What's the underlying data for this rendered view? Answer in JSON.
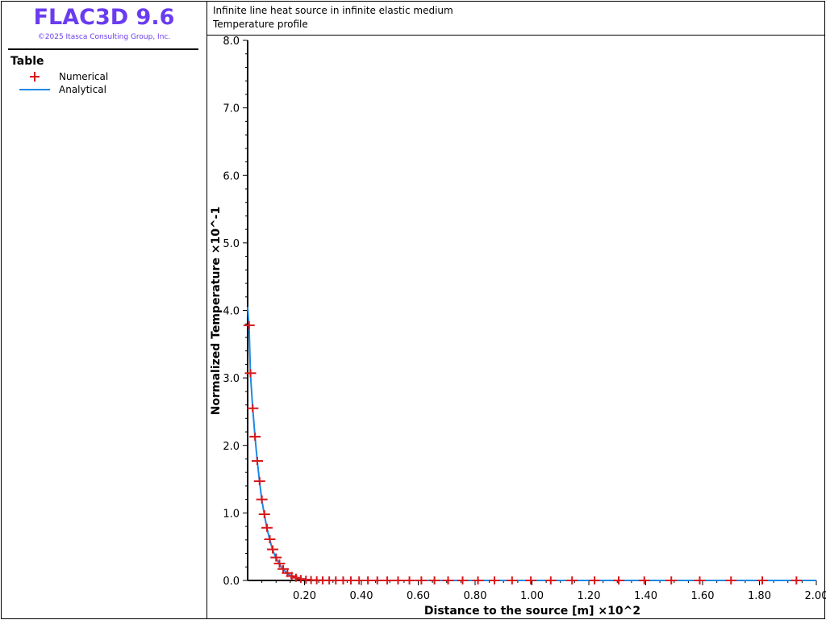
{
  "app": {
    "title": "FLAC3D 9.6",
    "copyright": "©2025 Itasca Consulting Group, Inc."
  },
  "legend": {
    "title": "Table",
    "items": [
      {
        "label": "Numerical",
        "symbol": "plus",
        "color": "#d7191c"
      },
      {
        "label": "Analytical",
        "symbol": "line",
        "color": "#1e88e5"
      }
    ]
  },
  "colors": {
    "brand": "#6a3cf0",
    "numerical": "#d7191c",
    "analytical": "#1e88e5"
  },
  "chart_data": {
    "type": "line",
    "title": "Infinite line heat source in infinite elastic medium",
    "subtitle": "Temperature profile",
    "xlabel": "Distance to the source [m] ×10^2",
    "ylabel": "Normalized Temperature ×10^-1",
    "xlim": [
      0.0,
      2.0
    ],
    "ylim": [
      0.0,
      8.0
    ],
    "xticks": [
      "0.20",
      "0.40",
      "0.60",
      "0.80",
      "1.00",
      "1.20",
      "1.40",
      "1.60",
      "1.80",
      "2.00"
    ],
    "yticks": [
      "0.0",
      "1.0",
      "2.0",
      "3.0",
      "4.0",
      "5.0",
      "6.0",
      "7.0",
      "8.0"
    ],
    "grid": false,
    "series": [
      {
        "name": "Numerical",
        "marker": "plus",
        "x": [
          0.005,
          0.01,
          0.018,
          0.026,
          0.034,
          0.042,
          0.05,
          0.059,
          0.068,
          0.078,
          0.088,
          0.1,
          0.112,
          0.125,
          0.14,
          0.155,
          0.17,
          0.187,
          0.205,
          0.223,
          0.243,
          0.264,
          0.287,
          0.31,
          0.336,
          0.363,
          0.392,
          0.423,
          0.456,
          0.491,
          0.529,
          0.569,
          0.611,
          0.657,
          0.705,
          0.756,
          0.81,
          0.868,
          0.93,
          0.996,
          1.066,
          1.141,
          1.22,
          1.305,
          1.395,
          1.49,
          1.59,
          1.7,
          1.81,
          1.93
        ],
        "y": [
          3.78,
          3.07,
          2.55,
          2.13,
          1.77,
          1.47,
          1.2,
          0.98,
          0.78,
          0.61,
          0.46,
          0.34,
          0.25,
          0.17,
          0.11,
          0.065,
          0.04,
          0.022,
          0.012,
          0.006,
          0.003,
          0.001,
          0.0,
          0.0,
          0.0,
          0.0,
          0.0,
          0.0,
          0.0,
          0.0,
          0.0,
          0.0,
          0.0,
          0.0,
          0.0,
          0.0,
          0.0,
          0.0,
          0.0,
          0.0,
          0.0,
          0.0,
          0.0,
          0.0,
          0.0,
          0.0,
          0.0,
          0.0,
          0.0,
          0.0
        ]
      },
      {
        "name": "Analytical",
        "marker": "line",
        "x": [
          0.0,
          0.005,
          0.01,
          0.018,
          0.026,
          0.034,
          0.042,
          0.05,
          0.059,
          0.068,
          0.078,
          0.088,
          0.1,
          0.112,
          0.125,
          0.14,
          0.155,
          0.17,
          0.19,
          0.21,
          0.24,
          0.28,
          0.35,
          0.5,
          1.0,
          1.5,
          2.0
        ],
        "y": [
          4.05,
          3.75,
          3.05,
          2.55,
          2.12,
          1.76,
          1.46,
          1.19,
          0.97,
          0.77,
          0.6,
          0.45,
          0.33,
          0.24,
          0.165,
          0.105,
          0.062,
          0.038,
          0.018,
          0.009,
          0.003,
          0.001,
          0.0,
          0.0,
          0.0,
          0.0,
          0.0
        ]
      }
    ]
  }
}
